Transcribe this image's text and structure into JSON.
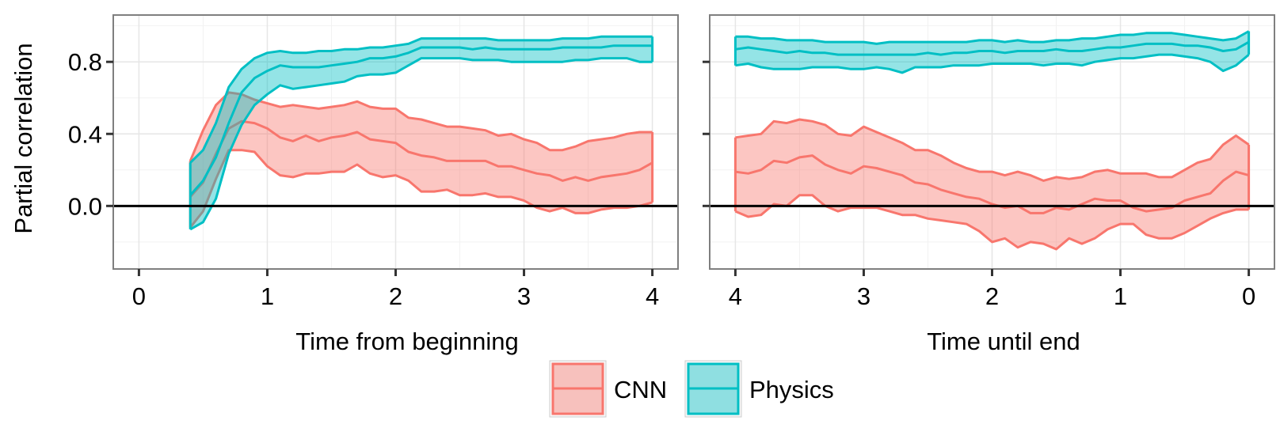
{
  "chart_data": {
    "type": "area",
    "colors": {
      "CNN": "#F8766D",
      "Physics": "#00BFC4"
    },
    "ylabel": "Partial correlation",
    "y_ticks": [
      "0.0",
      "0.4",
      "0.8"
    ],
    "y_tick_values": [
      0.0,
      0.4,
      0.8
    ],
    "ylim": [
      -0.35,
      1.06
    ],
    "reference_line": 0.0,
    "legend": {
      "position": "bottom",
      "entries": [
        "CNN",
        "Physics"
      ]
    },
    "panels": [
      {
        "xlabel": "Time from beginning",
        "x_ticks": [
          "0",
          "1",
          "2",
          "3",
          "4"
        ],
        "x_tick_values": [
          0,
          1,
          2,
          3,
          4
        ],
        "xlim": [
          -0.2,
          4.2
        ],
        "x_reversed": false,
        "series": [
          {
            "name": "CNN",
            "x": [
              0.4,
              0.5,
              0.6,
              0.7,
              0.8,
              0.9,
              1.0,
              1.1,
              1.2,
              1.3,
              1.4,
              1.5,
              1.6,
              1.7,
              1.8,
              1.9,
              2.0,
              2.1,
              2.2,
              2.3,
              2.4,
              2.5,
              2.6,
              2.7,
              2.8,
              2.9,
              3.0,
              3.1,
              3.2,
              3.3,
              3.4,
              3.5,
              3.6,
              3.7,
              3.8,
              3.9,
              4.0
            ],
            "lower": [
              -0.12,
              -0.03,
              0.15,
              0.31,
              0.31,
              0.3,
              0.22,
              0.17,
              0.16,
              0.18,
              0.18,
              0.19,
              0.19,
              0.23,
              0.18,
              0.16,
              0.17,
              0.14,
              0.08,
              0.08,
              0.09,
              0.06,
              0.06,
              0.07,
              0.05,
              0.05,
              0.03,
              -0.01,
              -0.03,
              -0.01,
              -0.04,
              -0.04,
              -0.02,
              -0.01,
              -0.01,
              0.0,
              0.02
            ],
            "mid": [
              0.05,
              0.13,
              0.29,
              0.43,
              0.47,
              0.46,
              0.43,
              0.38,
              0.36,
              0.39,
              0.36,
              0.38,
              0.39,
              0.41,
              0.37,
              0.36,
              0.35,
              0.3,
              0.28,
              0.27,
              0.25,
              0.25,
              0.25,
              0.25,
              0.22,
              0.22,
              0.2,
              0.18,
              0.17,
              0.14,
              0.16,
              0.14,
              0.16,
              0.17,
              0.18,
              0.2,
              0.24
            ],
            "upper": [
              0.25,
              0.42,
              0.56,
              0.63,
              0.62,
              0.59,
              0.57,
              0.55,
              0.56,
              0.55,
              0.54,
              0.55,
              0.56,
              0.58,
              0.55,
              0.54,
              0.54,
              0.49,
              0.48,
              0.46,
              0.44,
              0.44,
              0.43,
              0.42,
              0.39,
              0.4,
              0.37,
              0.35,
              0.31,
              0.31,
              0.33,
              0.36,
              0.37,
              0.38,
              0.4,
              0.41,
              0.41
            ]
          },
          {
            "name": "Physics",
            "x": [
              0.4,
              0.5,
              0.6,
              0.7,
              0.8,
              0.9,
              1.0,
              1.1,
              1.2,
              1.3,
              1.4,
              1.5,
              1.6,
              1.7,
              1.8,
              1.9,
              2.0,
              2.1,
              2.2,
              2.3,
              2.4,
              2.5,
              2.6,
              2.7,
              2.8,
              2.9,
              3.0,
              3.1,
              3.2,
              3.3,
              3.4,
              3.5,
              3.6,
              3.7,
              3.8,
              3.9,
              4.0
            ],
            "lower": [
              -0.13,
              -0.09,
              0.04,
              0.29,
              0.45,
              0.56,
              0.62,
              0.67,
              0.65,
              0.66,
              0.67,
              0.68,
              0.69,
              0.72,
              0.73,
              0.73,
              0.74,
              0.78,
              0.82,
              0.82,
              0.82,
              0.82,
              0.81,
              0.81,
              0.81,
              0.8,
              0.8,
              0.8,
              0.8,
              0.8,
              0.81,
              0.81,
              0.82,
              0.82,
              0.82,
              0.8,
              0.8
            ],
            "mid": [
              0.06,
              0.14,
              0.27,
              0.46,
              0.63,
              0.71,
              0.75,
              0.78,
              0.77,
              0.77,
              0.77,
              0.78,
              0.79,
              0.8,
              0.82,
              0.82,
              0.83,
              0.85,
              0.88,
              0.88,
              0.88,
              0.88,
              0.87,
              0.88,
              0.87,
              0.87,
              0.87,
              0.87,
              0.87,
              0.88,
              0.88,
              0.88,
              0.88,
              0.89,
              0.89,
              0.89,
              0.89
            ],
            "upper": [
              0.24,
              0.31,
              0.46,
              0.66,
              0.76,
              0.82,
              0.85,
              0.86,
              0.85,
              0.85,
              0.86,
              0.86,
              0.87,
              0.87,
              0.88,
              0.88,
              0.89,
              0.9,
              0.93,
              0.93,
              0.93,
              0.93,
              0.93,
              0.93,
              0.92,
              0.92,
              0.92,
              0.92,
              0.92,
              0.93,
              0.93,
              0.93,
              0.94,
              0.94,
              0.94,
              0.94,
              0.94
            ]
          }
        ]
      },
      {
        "xlabel": "Time until end",
        "x_ticks": [
          "4",
          "3",
          "2",
          "1",
          "0"
        ],
        "x_tick_values": [
          4,
          3,
          2,
          1,
          0
        ],
        "xlim": [
          4.2,
          -0.2
        ],
        "x_reversed": true,
        "series": [
          {
            "name": "CNN",
            "x": [
              4.0,
              3.9,
              3.8,
              3.7,
              3.6,
              3.5,
              3.4,
              3.3,
              3.2,
              3.1,
              3.0,
              2.9,
              2.8,
              2.7,
              2.6,
              2.5,
              2.4,
              2.3,
              2.2,
              2.1,
              2.0,
              1.9,
              1.8,
              1.7,
              1.6,
              1.5,
              1.4,
              1.3,
              1.2,
              1.1,
              1.0,
              0.9,
              0.8,
              0.7,
              0.6,
              0.5,
              0.4,
              0.3,
              0.2,
              0.1,
              0.0
            ],
            "lower": [
              -0.03,
              -0.06,
              -0.05,
              0.01,
              0.0,
              0.06,
              0.06,
              0.0,
              -0.03,
              -0.01,
              -0.01,
              -0.01,
              -0.03,
              -0.05,
              -0.05,
              -0.07,
              -0.08,
              -0.09,
              -0.1,
              -0.14,
              -0.2,
              -0.18,
              -0.23,
              -0.2,
              -0.21,
              -0.24,
              -0.18,
              -0.21,
              -0.18,
              -0.13,
              -0.1,
              -0.1,
              -0.16,
              -0.18,
              -0.18,
              -0.15,
              -0.11,
              -0.07,
              -0.04,
              -0.02,
              -0.02
            ],
            "mid": [
              0.19,
              0.18,
              0.2,
              0.25,
              0.24,
              0.27,
              0.28,
              0.23,
              0.2,
              0.18,
              0.22,
              0.21,
              0.19,
              0.17,
              0.13,
              0.12,
              0.09,
              0.07,
              0.05,
              0.04,
              0.01,
              -0.01,
              0.0,
              -0.04,
              -0.04,
              -0.01,
              -0.02,
              0.01,
              0.04,
              0.03,
              0.03,
              -0.01,
              -0.03,
              -0.02,
              -0.01,
              0.03,
              0.05,
              0.07,
              0.14,
              0.19,
              0.17
            ],
            "upper": [
              0.38,
              0.39,
              0.4,
              0.47,
              0.46,
              0.48,
              0.47,
              0.45,
              0.4,
              0.39,
              0.44,
              0.41,
              0.38,
              0.35,
              0.31,
              0.31,
              0.28,
              0.24,
              0.21,
              0.19,
              0.19,
              0.17,
              0.19,
              0.17,
              0.14,
              0.16,
              0.15,
              0.16,
              0.19,
              0.2,
              0.18,
              0.18,
              0.18,
              0.16,
              0.16,
              0.2,
              0.24,
              0.26,
              0.34,
              0.39,
              0.34
            ]
          },
          {
            "name": "Physics",
            "x": [
              4.0,
              3.9,
              3.8,
              3.7,
              3.6,
              3.5,
              3.4,
              3.3,
              3.2,
              3.1,
              3.0,
              2.9,
              2.8,
              2.7,
              2.6,
              2.5,
              2.4,
              2.3,
              2.2,
              2.1,
              2.0,
              1.9,
              1.8,
              1.7,
              1.6,
              1.5,
              1.4,
              1.3,
              1.2,
              1.1,
              1.0,
              0.9,
              0.8,
              0.7,
              0.6,
              0.5,
              0.4,
              0.3,
              0.2,
              0.1,
              0.0
            ],
            "lower": [
              0.78,
              0.79,
              0.77,
              0.76,
              0.76,
              0.76,
              0.77,
              0.77,
              0.77,
              0.76,
              0.76,
              0.77,
              0.76,
              0.74,
              0.77,
              0.77,
              0.77,
              0.78,
              0.78,
              0.78,
              0.79,
              0.79,
              0.79,
              0.79,
              0.78,
              0.79,
              0.79,
              0.78,
              0.8,
              0.81,
              0.82,
              0.82,
              0.83,
              0.84,
              0.84,
              0.83,
              0.82,
              0.8,
              0.75,
              0.78,
              0.84
            ],
            "mid": [
              0.87,
              0.88,
              0.87,
              0.86,
              0.85,
              0.86,
              0.85,
              0.85,
              0.84,
              0.84,
              0.84,
              0.84,
              0.84,
              0.84,
              0.84,
              0.85,
              0.84,
              0.85,
              0.85,
              0.86,
              0.86,
              0.85,
              0.86,
              0.86,
              0.86,
              0.87,
              0.86,
              0.86,
              0.87,
              0.88,
              0.88,
              0.89,
              0.9,
              0.9,
              0.9,
              0.89,
              0.89,
              0.88,
              0.86,
              0.87,
              0.91
            ],
            "upper": [
              0.94,
              0.94,
              0.93,
              0.93,
              0.92,
              0.92,
              0.92,
              0.91,
              0.91,
              0.91,
              0.91,
              0.9,
              0.91,
              0.91,
              0.91,
              0.91,
              0.91,
              0.91,
              0.91,
              0.92,
              0.92,
              0.91,
              0.92,
              0.91,
              0.91,
              0.92,
              0.92,
              0.93,
              0.93,
              0.94,
              0.95,
              0.95,
              0.96,
              0.96,
              0.96,
              0.95,
              0.94,
              0.93,
              0.92,
              0.93,
              0.97
            ]
          }
        ]
      }
    ]
  }
}
